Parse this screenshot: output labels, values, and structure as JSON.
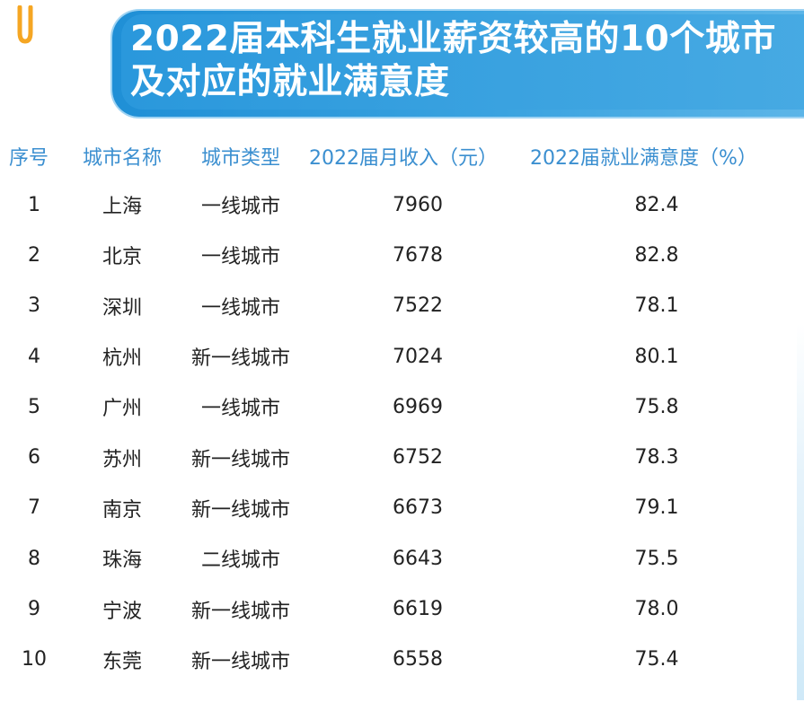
{
  "banner": {
    "title_line1": "2022届本科生就业薪资较高的10个城市",
    "title_line2": "及对应的就业满意度"
  },
  "table": {
    "headers": [
      "序号",
      "城市名称",
      "城市类型",
      "2022届月收入（元）",
      "2022届就业满意度（%）"
    ],
    "rows": [
      [
        "1",
        "上海",
        "一线城市",
        "7960",
        "82.4"
      ],
      [
        "2",
        "北京",
        "一线城市",
        "7678",
        "82.8"
      ],
      [
        "3",
        "深圳",
        "一线城市",
        "7522",
        "78.1"
      ],
      [
        "4",
        "杭州",
        "新一线城市",
        "7024",
        "80.1"
      ],
      [
        "5",
        "广州",
        "一线城市",
        "6969",
        "75.8"
      ],
      [
        "6",
        "苏州",
        "新一线城市",
        "6752",
        "78.3"
      ],
      [
        "7",
        "南京",
        "新一线城市",
        "6673",
        "79.1"
      ],
      [
        "8",
        "珠海",
        "二线城市",
        "6643",
        "75.5"
      ],
      [
        "9",
        "宁波",
        "新一线城市",
        "6619",
        "78.0"
      ],
      [
        "10",
        "东莞",
        "新一线城市",
        "6558",
        "75.4"
      ]
    ]
  },
  "colors": {
    "header_text": "#3b8fd0",
    "banner_blue": "#2a98dc",
    "logo_orange": "#f5a623"
  }
}
